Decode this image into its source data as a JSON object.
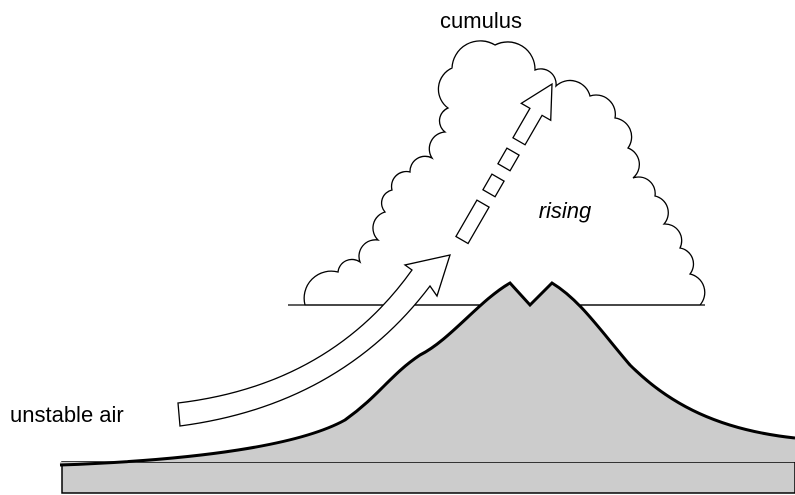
{
  "labels": {
    "cloud": "cumulus",
    "motion": "rising",
    "air": "unstable air"
  }
}
